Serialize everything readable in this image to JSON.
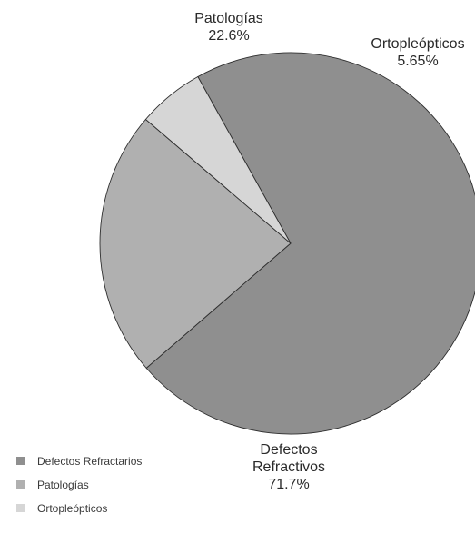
{
  "chart_data": {
    "type": "pie",
    "title": "",
    "slices": [
      {
        "legend_label": "Defectos Refractarios",
        "label_lines": [
          "Defectos",
          "Refractivos"
        ],
        "value": 71.7,
        "value_label": "71.7%",
        "color": "#8f8f8f"
      },
      {
        "legend_label": "Patologías",
        "label_lines": [
          "Patologías"
        ],
        "value": 22.6,
        "value_label": "22.6%",
        "color": "#b0b0b0"
      },
      {
        "legend_label": "Ortopleópticos",
        "label_lines": [
          "Ortopleópticos"
        ],
        "value": 5.65,
        "value_label": "5.65%",
        "color": "#d6d6d6"
      }
    ],
    "legend_position": "bottom-left",
    "outline_color": "#2e2e2e"
  }
}
